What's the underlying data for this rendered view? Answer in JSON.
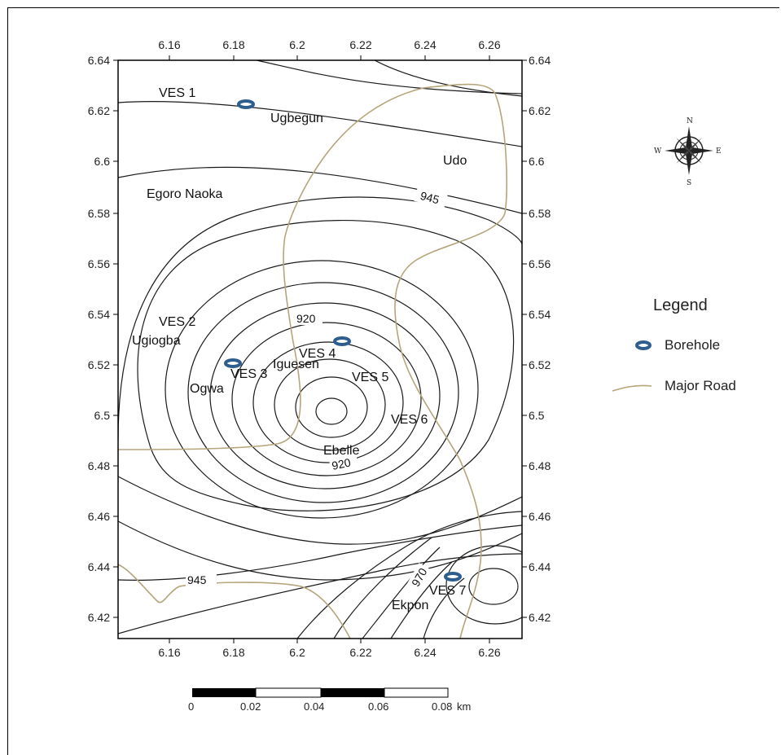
{
  "map": {
    "x_ticks": [
      "6.16",
      "6.18",
      "6.2",
      "6.22",
      "6.24",
      "6.26"
    ],
    "y_ticks": [
      "6.64",
      "6.62",
      "6.6",
      "6.58",
      "6.56",
      "6.54",
      "6.52",
      "6.5",
      "6.48",
      "6.46",
      "6.44",
      "6.42"
    ],
    "place_names": {
      "ves1": "VES 1",
      "ugbegun": "Ugbegun",
      "udo": "Udo",
      "egoro_naoka": "Egoro Naoka",
      "ves2": "VES 2",
      "ugiogba": "Ugiogba",
      "ves3": "VES 3",
      "ogwa": "Ogwa",
      "ves4": "VES 4",
      "iguesen": "Iguesen",
      "ves5": "VES 5",
      "ves6": "VES 6",
      "ebelle": "Ebelle",
      "ves7": "VES 7",
      "ekpon": "Ekpon"
    },
    "contour_labels": {
      "c945_top": "945",
      "c920_top": "920",
      "c920_bottom": "920",
      "c945_bottom": "945",
      "c970": "970"
    },
    "colors": {
      "contour": "#1a1a1a",
      "road": "#b5a57a",
      "borehole": "#2e5e8e"
    }
  },
  "legend": {
    "title": "Legend",
    "items": [
      {
        "label": "Borehole",
        "icon": "borehole-icon"
      },
      {
        "label": "Major Road",
        "icon": "road-line-icon"
      }
    ]
  },
  "compass": {
    "n": "N",
    "s": "S",
    "e": "E",
    "w": "W",
    "icon": "compass-rose-icon"
  },
  "scale_bar": {
    "labels": [
      "0",
      "0.02",
      "0.04",
      "0.06",
      "0.08"
    ],
    "unit": "km"
  }
}
